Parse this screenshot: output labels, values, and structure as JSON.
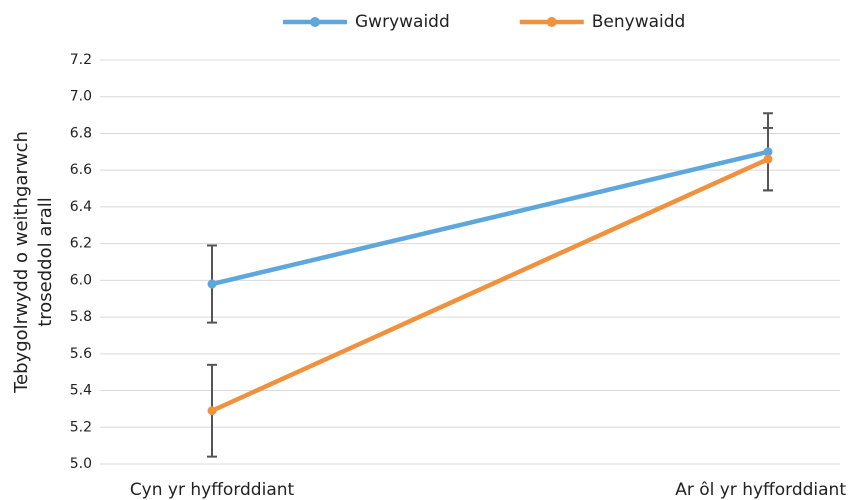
{
  "chart_data": {
    "type": "line",
    "ylabel": [
      "Tebygolrwydd o weithgarwch",
      "troseddol arall"
    ],
    "categories": [
      "Cyn yr hyfforddiant",
      "Ar ôl yr hyfforddiant"
    ],
    "series": [
      {
        "name": "Gwrywaidd",
        "color": "#5ea7dd",
        "values": [
          5.98,
          6.7
        ],
        "errors": [
          0.21,
          0.21
        ]
      },
      {
        "name": "Benywaidd",
        "color": "#f0913d",
        "values": [
          5.29,
          6.66
        ],
        "errors": [
          0.25,
          0.17
        ]
      }
    ],
    "ylim": [
      5.0,
      7.2
    ],
    "yticks": [
      {
        "value": 5.0,
        "label": "5.0"
      },
      5.2,
      5.4,
      5.6,
      5.8,
      {
        "value": 6.0,
        "label": "6.0"
      },
      6.2,
      6.4,
      6.6,
      6.8,
      {
        "value": 7.0,
        "label": "7.0"
      },
      7.2
    ],
    "grid": true,
    "legend": "top"
  }
}
